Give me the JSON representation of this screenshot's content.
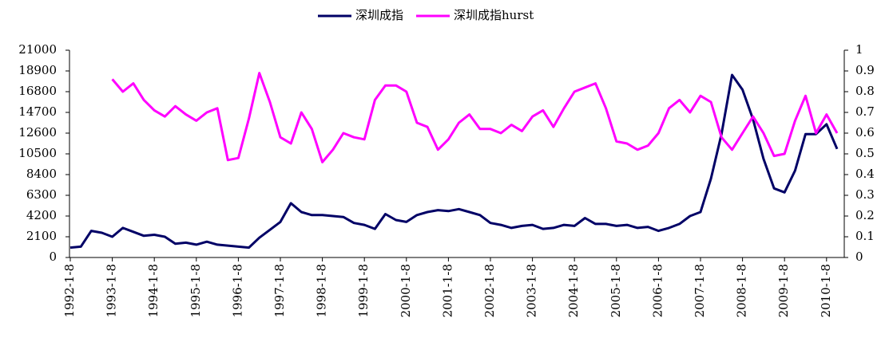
{
  "chart_data": {
    "type": "line",
    "categories": [
      "1992-1-8",
      null,
      null,
      null,
      "1993-1-8",
      null,
      null,
      null,
      "1994-1-8",
      null,
      null,
      null,
      "1995-1-8",
      null,
      null,
      null,
      "1996-1-8",
      null,
      null,
      null,
      "1997-1-8",
      null,
      null,
      null,
      "1998-1-8",
      null,
      null,
      null,
      "1999-1-8",
      null,
      null,
      null,
      "2000-1-8",
      null,
      null,
      null,
      "2001-1-8",
      null,
      null,
      null,
      "2002-1-8",
      null,
      null,
      null,
      "2003-1-8",
      null,
      null,
      null,
      "2004-1-8",
      null,
      null,
      null,
      "2005-1-8",
      null,
      null,
      null,
      "2006-1-8",
      null,
      null,
      null,
      "2007-1-8",
      null,
      null,
      null,
      "2008-1-8",
      null,
      null,
      null,
      "2009-1-8",
      null,
      null,
      null,
      "2010-1-8",
      null
    ],
    "series": [
      {
        "name": "深圳成指",
        "color": "#000066",
        "values": [
          1000,
          1100,
          2700,
          2500,
          2100,
          3000,
          2600,
          2200,
          2300,
          2100,
          1400,
          1500,
          1300,
          1600,
          1300,
          1200,
          1100,
          1000,
          2000,
          2800,
          3600,
          5500,
          4600,
          4300,
          4300,
          4200,
          4100,
          3500,
          3300,
          2900,
          4400,
          3800,
          3600,
          4300,
          4600,
          4800,
          4700,
          4900,
          4600,
          4300,
          3500,
          3300,
          3000,
          3200,
          3300,
          2900,
          3000,
          3300,
          3200,
          4000,
          3400,
          3400,
          3200,
          3300,
          3000,
          3100,
          2700,
          3000,
          3400,
          4200,
          4600,
          8000,
          12500,
          18500,
          17000,
          14000,
          10000,
          7000,
          6600,
          8800,
          12500,
          12500,
          13500,
          11000
        ]
      },
      {
        "name": "深圳成指hurst",
        "color": "#ff00ff",
        "axis": "y2",
        "values": [
          null,
          null,
          null,
          null,
          0.86,
          0.8,
          0.84,
          0.76,
          0.71,
          0.68,
          0.73,
          0.69,
          0.66,
          0.7,
          0.72,
          0.47,
          0.48,
          0.67,
          0.89,
          0.75,
          0.58,
          0.55,
          0.7,
          0.62,
          0.46,
          0.52,
          0.6,
          0.58,
          0.57,
          0.76,
          0.83,
          0.83,
          0.8,
          0.65,
          0.63,
          0.52,
          0.57,
          0.65,
          0.69,
          0.62,
          0.62,
          0.6,
          0.64,
          0.61,
          0.68,
          0.71,
          0.63,
          0.72,
          0.8,
          0.82,
          0.84,
          0.72,
          0.56,
          0.55,
          0.52,
          0.54,
          0.6,
          0.72,
          0.76,
          0.7,
          0.78,
          0.75,
          0.58,
          0.52,
          0.6,
          0.68,
          0.6,
          0.49,
          0.5,
          0.66,
          0.78,
          0.6,
          0.69,
          0.6
        ]
      }
    ],
    "ylim": [
      0,
      21000
    ],
    "yticks": [
      0,
      2100,
      4200,
      6300,
      8400,
      10500,
      12600,
      14700,
      16800,
      18900,
      21000
    ],
    "y2lim": [
      0,
      1
    ],
    "y2ticks": [
      0,
      0.1,
      0.2,
      0.3,
      0.4,
      0.5,
      0.6,
      0.7,
      0.8,
      0.9,
      1
    ],
    "legend": "top"
  }
}
